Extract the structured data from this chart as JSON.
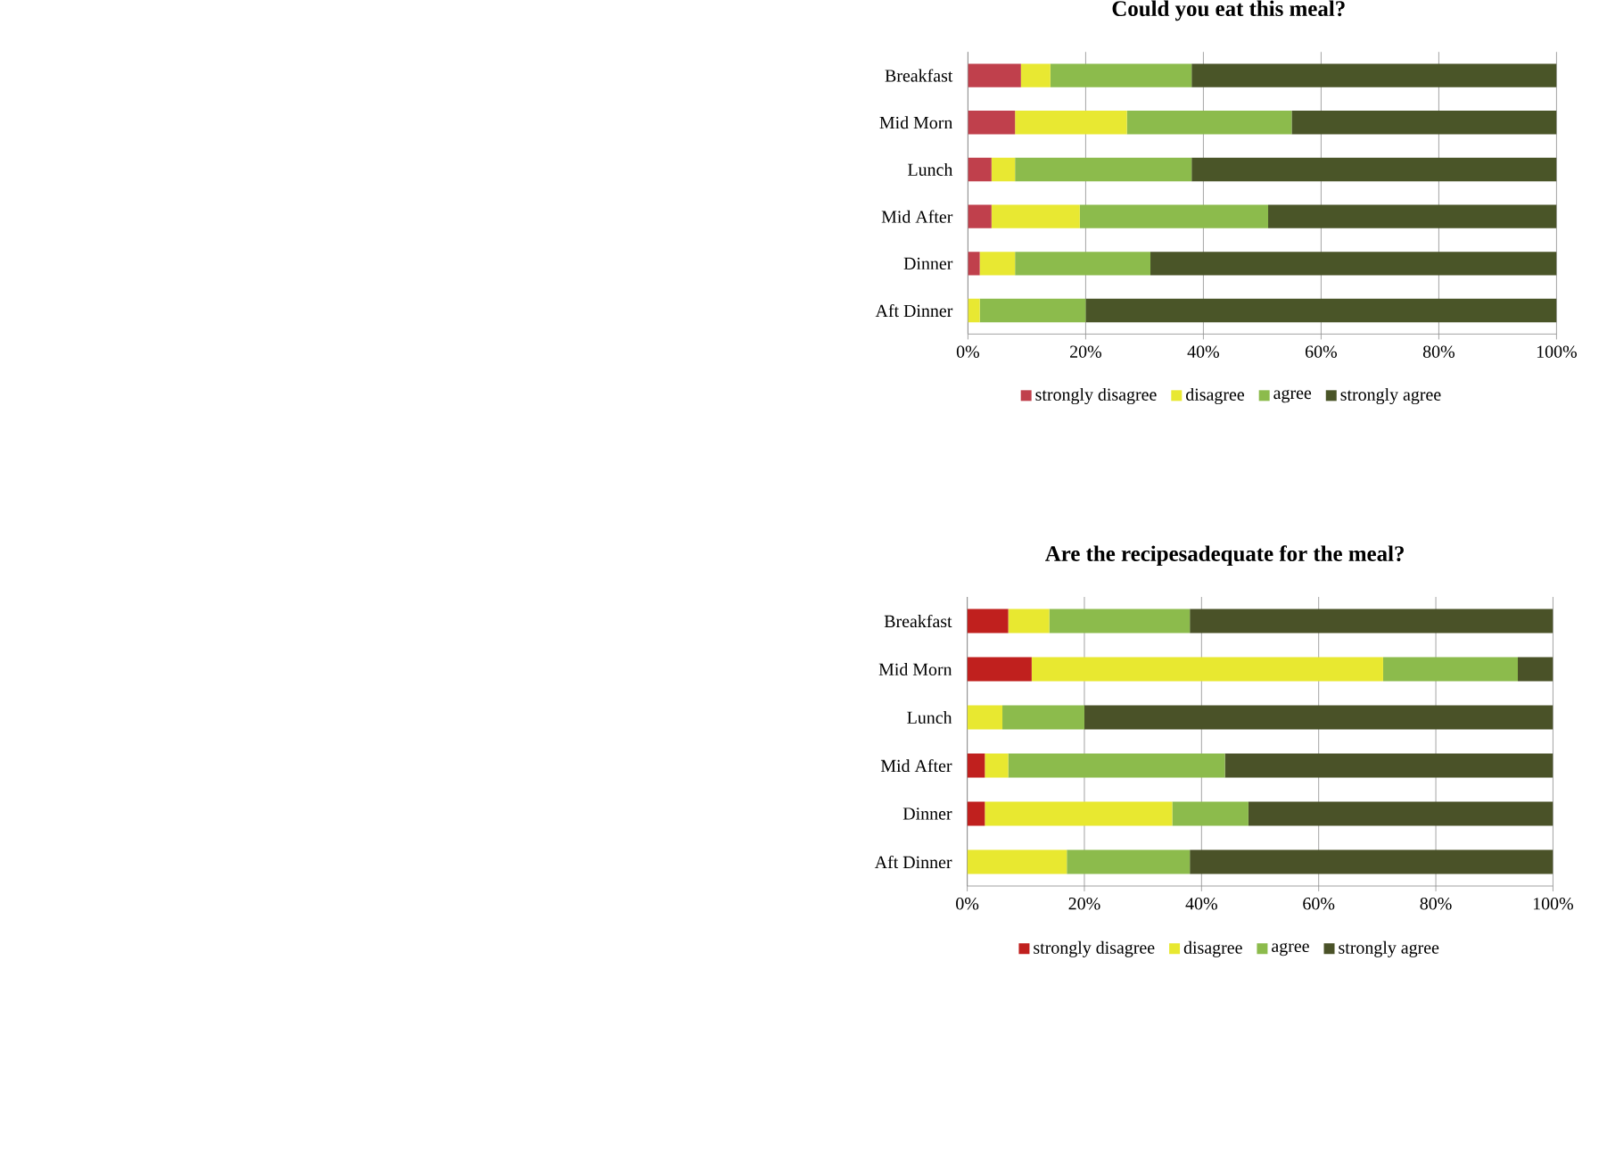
{
  "chart_data": [
    {
      "type": "bar",
      "orientation": "horizontal",
      "stacked": true,
      "title": "Could you eat this meal?",
      "categories": [
        "Breakfast",
        "Mid Morn",
        "Lunch",
        "Mid After",
        "Dinner",
        "Aft Dinner"
      ],
      "series": [
        {
          "name": "strongly disagree",
          "color": "#c0404c",
          "values": [
            9,
            8,
            4,
            4,
            2,
            0
          ]
        },
        {
          "name": "disagree",
          "color": "#e8e832",
          "values": [
            5,
            19,
            4,
            15,
            6,
            2
          ]
        },
        {
          "name": "agree",
          "color": "#8cbb4c",
          "values": [
            24,
            28,
            30,
            32,
            23,
            18
          ]
        },
        {
          "name": "strongly agree",
          "color": "#4a5528",
          "values": [
            62,
            45,
            62,
            49,
            69,
            80
          ]
        }
      ],
      "xlim": [
        0,
        100
      ],
      "xticks": [
        {
          "value": 0,
          "label": "0%"
        },
        {
          "value": 20,
          "label": "20%"
        },
        {
          "value": 40,
          "label": "40%"
        },
        {
          "value": 60,
          "label": "60%"
        },
        {
          "value": 80,
          "label": "80%"
        },
        {
          "value": 100,
          "label": "100%"
        }
      ],
      "grid": "x",
      "legend": "bottom"
    },
    {
      "type": "bar",
      "orientation": "horizontal",
      "stacked": true,
      "title": "Are the recipesadequate for the meal?",
      "categories": [
        "Breakfast",
        "Mid Morn",
        "Lunch",
        "Mid After",
        "Dinner",
        "Aft Dinner"
      ],
      "series": [
        {
          "name": "strongly disagree",
          "color": "#c0201e",
          "values": [
            7,
            11,
            0,
            3,
            3,
            0
          ]
        },
        {
          "name": "disagree",
          "color": "#e8e830",
          "values": [
            7,
            60,
            6,
            4,
            32,
            17
          ]
        },
        {
          "name": "agree",
          "color": "#8cbb4c",
          "values": [
            24,
            23,
            14,
            37,
            13,
            21
          ]
        },
        {
          "name": "strongly agree",
          "color": "#4a5228",
          "values": [
            62,
            6,
            80,
            56,
            52,
            62
          ]
        }
      ],
      "xlim": [
        0,
        100
      ],
      "xticks": [
        {
          "value": 0,
          "label": "0%"
        },
        {
          "value": 20,
          "label": "20%"
        },
        {
          "value": 40,
          "label": "40%"
        },
        {
          "value": 60,
          "label": "60%"
        },
        {
          "value": 80,
          "label": "80%"
        },
        {
          "value": 100,
          "label": "100%"
        }
      ],
      "grid": "x",
      "legend": "bottom"
    }
  ]
}
